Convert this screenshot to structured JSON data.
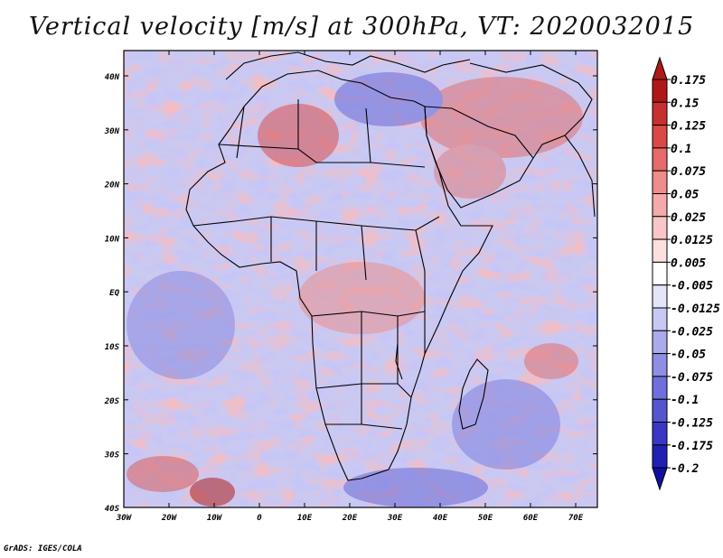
{
  "title": "Vertical velocity [m/s] at 300hPa, VT: 2020032015",
  "credit": "GrADS: IGES/COLA",
  "map": {
    "lat_labels": [
      "40N",
      "30N",
      "20N",
      "10N",
      "EQ",
      "10S",
      "20S",
      "30S",
      "40S"
    ],
    "lon_labels": [
      "30W",
      "20W",
      "10W",
      "0",
      "10E",
      "20E",
      "30E",
      "40E",
      "50E",
      "60E",
      "70E"
    ]
  },
  "colorbar": {
    "labels": [
      "0.175",
      "0.15",
      "0.125",
      "0.1",
      "0.075",
      "0.05",
      "0.025",
      "0.0125",
      "0.005",
      "-0.005",
      "-0.0125",
      "-0.025",
      "-0.05",
      "-0.075",
      "-0.1",
      "-0.125",
      "-0.175",
      "-0.2"
    ],
    "colors": [
      "#b01818",
      "#c83030",
      "#dc4848",
      "#e86a6a",
      "#f08c8c",
      "#f4aaaa",
      "#f8c6c6",
      "#fce0e0",
      "#ffffff",
      "#e4e4fa",
      "#c8c8f4",
      "#ababec",
      "#8e8ee4",
      "#7070dc",
      "#5555d0",
      "#3838c4",
      "#2020b4",
      "#1010a0"
    ]
  }
}
